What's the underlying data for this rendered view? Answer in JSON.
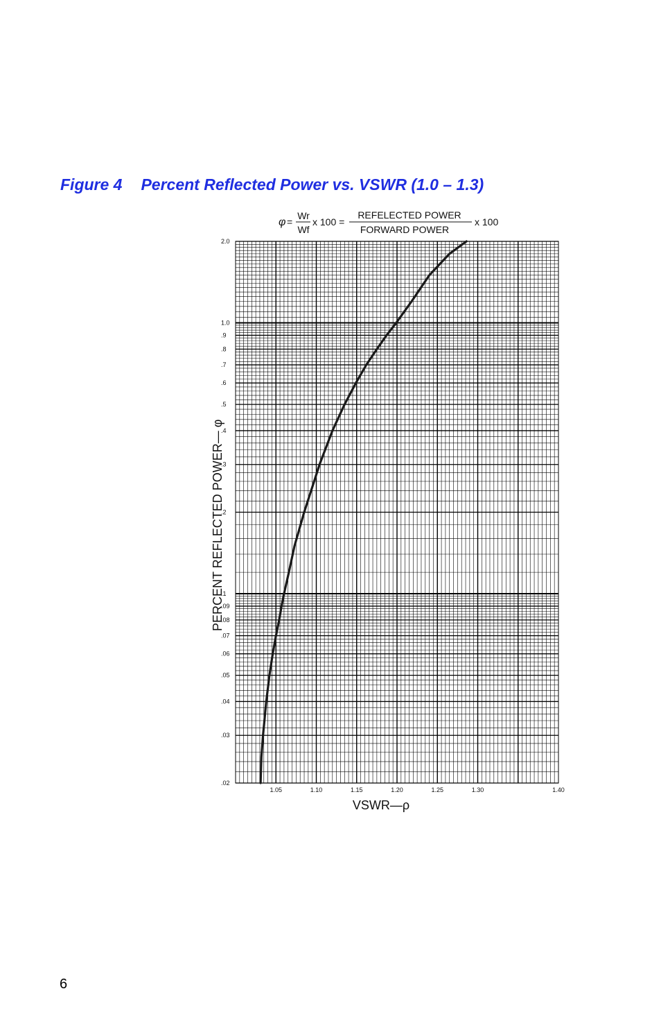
{
  "figure": {
    "label": "Figure 4",
    "title": "Percent Reflected Power vs. VSWR (1.0 – 1.3)"
  },
  "page_number": "6",
  "formula": {
    "phi": "φ",
    "equals": "=",
    "frac1_num": "Wr",
    "frac1_den": "Wf",
    "times100_a": "x 100 =",
    "frac2_num": "REFELECTED POWER",
    "frac2_den": "FORWARD POWER",
    "times100_b": "x 100"
  },
  "chart_data": {
    "type": "line",
    "xlabel": "VSWR—ρ",
    "ylabel": "PERCENT REFLECTED POWER— φ",
    "x_scale": "linear",
    "y_scale": "log",
    "xlim": [
      1.0,
      1.4
    ],
    "ylim": [
      0.02,
      2.0
    ],
    "grid": true,
    "x_ticks": [
      {
        "value": 1.05,
        "label": "1.05"
      },
      {
        "value": 1.1,
        "label": "1.10"
      },
      {
        "value": 1.15,
        "label": "1.15"
      },
      {
        "value": 1.2,
        "label": "1.20"
      },
      {
        "value": 1.25,
        "label": "1.25"
      },
      {
        "value": 1.3,
        "label": "1.30"
      },
      {
        "value": 1.4,
        "label": "1.40"
      }
    ],
    "y_ticks": [
      {
        "value": 2.0,
        "label": "2.0"
      },
      {
        "value": 1.0,
        "label": "1.0"
      },
      {
        "value": 0.9,
        "label": ".9"
      },
      {
        "value": 0.8,
        "label": ".8"
      },
      {
        "value": 0.7,
        "label": ".7"
      },
      {
        "value": 0.6,
        "label": ".6"
      },
      {
        "value": 0.5,
        "label": ".5"
      },
      {
        "value": 0.4,
        "label": ".4"
      },
      {
        "value": 0.3,
        "label": ".3"
      },
      {
        "value": 0.2,
        "label": ".2"
      },
      {
        "value": 0.1,
        "label": ".1"
      },
      {
        "value": 0.09,
        "label": ".09"
      },
      {
        "value": 0.08,
        "label": ".08"
      },
      {
        "value": 0.07,
        "label": ".07"
      },
      {
        "value": 0.06,
        "label": ".06"
      },
      {
        "value": 0.05,
        "label": ".05"
      },
      {
        "value": 0.04,
        "label": ".04"
      },
      {
        "value": 0.03,
        "label": ".03"
      },
      {
        "value": 0.02,
        "label": ".02"
      }
    ],
    "series": [
      {
        "color": "#1a1a1a",
        "points": [
          [
            1.031,
            0.02
          ],
          [
            1.032,
            0.025
          ],
          [
            1.034,
            0.03
          ],
          [
            1.038,
            0.04
          ],
          [
            1.042,
            0.05
          ],
          [
            1.046,
            0.06
          ],
          [
            1.05,
            0.07
          ],
          [
            1.054,
            0.08
          ],
          [
            1.057,
            0.09
          ],
          [
            1.06,
            0.1
          ],
          [
            1.066,
            0.12
          ],
          [
            1.073,
            0.15
          ],
          [
            1.085,
            0.2
          ],
          [
            1.104,
            0.3
          ],
          [
            1.12,
            0.4
          ],
          [
            1.135,
            0.5
          ],
          [
            1.149,
            0.6
          ],
          [
            1.162,
            0.7
          ],
          [
            1.175,
            0.8
          ],
          [
            1.187,
            0.9
          ],
          [
            1.199,
            1.0
          ],
          [
            1.218,
            1.2
          ],
          [
            1.24,
            1.5
          ],
          [
            1.265,
            1.8
          ],
          [
            1.286,
            2.0
          ]
        ]
      }
    ]
  }
}
